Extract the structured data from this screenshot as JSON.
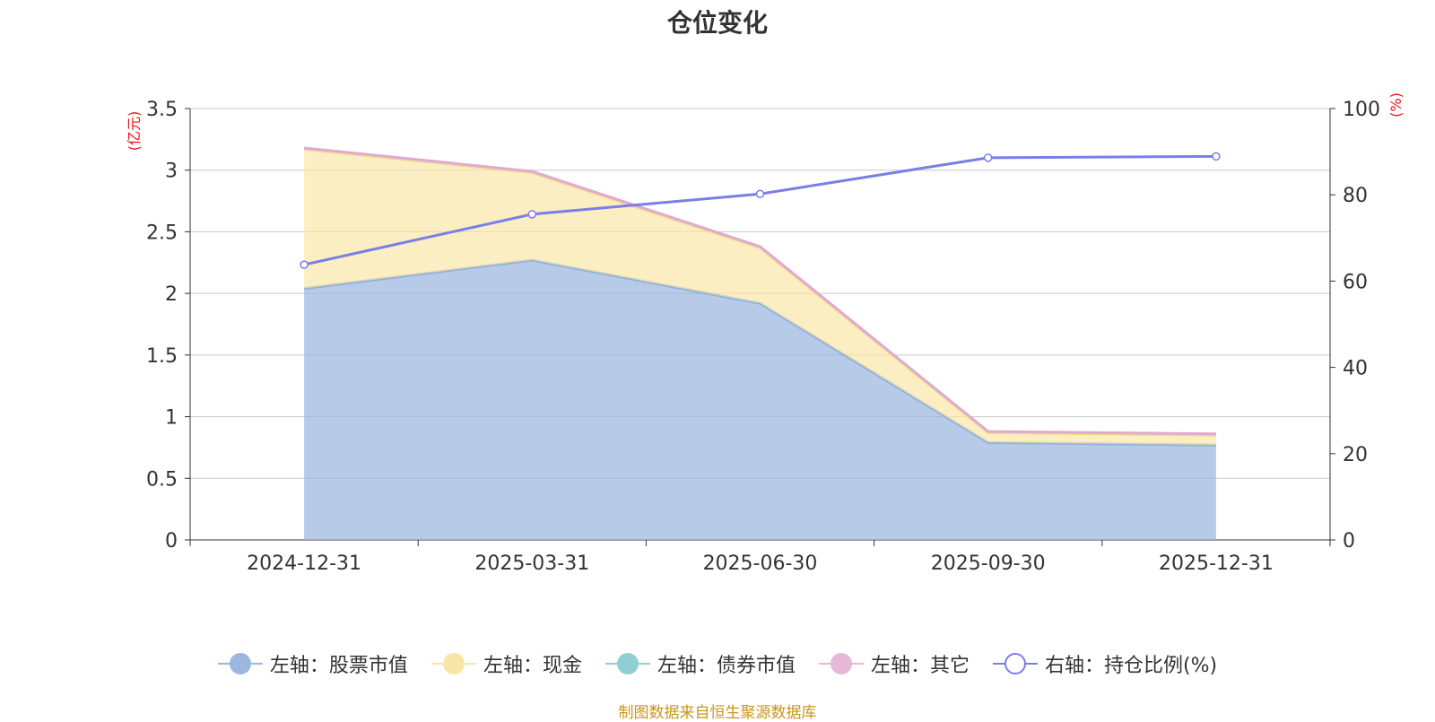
{
  "chart_data": {
    "type": "area",
    "title": "仓位变化",
    "categories": [
      "2024-12-31",
      "2025-03-31",
      "2025-06-30",
      "2025-09-30",
      "2025-12-31"
    ],
    "left_axis": {
      "unit": "(亿元)",
      "ylim": [
        0,
        3.5
      ],
      "ticks": [
        "0",
        "0.5",
        "1",
        "1.5",
        "2",
        "2.5",
        "3",
        "3.5"
      ]
    },
    "right_axis": {
      "unit": "(%)",
      "ylim": [
        0,
        100
      ],
      "ticks": [
        "0",
        "20",
        "40",
        "60",
        "80",
        "100"
      ]
    },
    "grid": true,
    "stacked": true,
    "series": [
      {
        "name": "左轴：股票市值",
        "axis": "left",
        "kind": "area",
        "color": "#9bb7e0",
        "values": [
          2.04,
          2.27,
          1.92,
          0.79,
          0.77
        ]
      },
      {
        "name": "左轴：现金",
        "axis": "left",
        "kind": "area",
        "color": "#f7e6a5",
        "values": [
          1.13,
          0.71,
          0.45,
          0.08,
          0.08
        ]
      },
      {
        "name": "左轴：债券市值",
        "axis": "left",
        "kind": "area",
        "color": "#8fcfd1",
        "values": [
          0,
          0,
          0,
          0,
          0
        ]
      },
      {
        "name": "左轴：其它",
        "axis": "left",
        "kind": "area",
        "color": "#e6b8da",
        "values": [
          0.01,
          0.01,
          0.01,
          0.01,
          0.01
        ]
      },
      {
        "name": "右轴：持仓比例(%)",
        "axis": "right",
        "kind": "line",
        "color": "#7a7ee8",
        "values": [
          63.8,
          75.5,
          80.2,
          88.6,
          88.9
        ]
      }
    ],
    "legend_position": "bottom-center"
  },
  "source_note": "制图数据来自恒生聚源数据库"
}
